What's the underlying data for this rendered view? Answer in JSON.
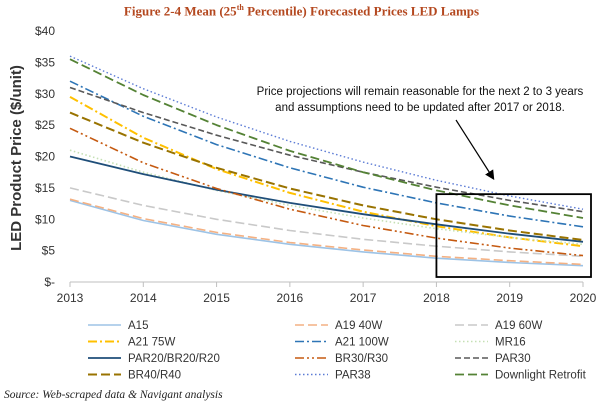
{
  "figure": {
    "title_prefix": "Figure 2-4 Mean (25",
    "title_sup": "th",
    "title_suffix": " Percentile) Forecasted Prices LED Lamps",
    "source": "Source: Web-scraped data & Navigant analysis"
  },
  "chart_data": {
    "type": "line",
    "ylabel": "LED Product Price ($/unit)",
    "xlabel": "",
    "x": [
      2013,
      2014,
      2015,
      2016,
      2017,
      2018,
      2019,
      2020
    ],
    "x_tick_labels": [
      "2013",
      "2014",
      "2015",
      "2016",
      "2017",
      "2018",
      "2019",
      "2020"
    ],
    "ylim": [
      0,
      40
    ],
    "y_ticks": [
      0,
      5,
      10,
      15,
      20,
      25,
      30,
      35,
      40
    ],
    "y_tick_labels": [
      "$-",
      "$5",
      "$10",
      "$15",
      "$20",
      "$25",
      "$30",
      "$35",
      "$40"
    ],
    "grid": false,
    "legend_position": "bottom",
    "annotation": {
      "line1": "Price projections will remain reasonable for the next 2 to 3 years",
      "line2": "and assumptions need to be updated after 2017 or 2018."
    },
    "highlight_range": {
      "x": [
        2018,
        2020
      ],
      "y": [
        0,
        14
      ]
    },
    "series": [
      {
        "name": "A15",
        "color": "#9dc3e6",
        "dash": "solid",
        "width": 1.6,
        "values": [
          13.0,
          9.8,
          7.6,
          6.0,
          4.8,
          3.8,
          3.1,
          2.6
        ]
      },
      {
        "name": "A19 40W",
        "color": "#f4b183",
        "dash": "long",
        "width": 1.6,
        "values": [
          13.2,
          10.1,
          7.9,
          6.3,
          5.1,
          4.1,
          3.4,
          2.8
        ]
      },
      {
        "name": "A19 60W",
        "color": "#c9c9c9",
        "dash": "long",
        "width": 1.6,
        "values": [
          15.0,
          12.2,
          10.0,
          8.2,
          6.8,
          5.7,
          4.8,
          4.1
        ]
      },
      {
        "name": "A21 75W",
        "color": "#ffc000",
        "dash": "dashdot",
        "width": 2.0,
        "values": [
          29.5,
          23.0,
          18.0,
          14.2,
          11.2,
          8.9,
          7.1,
          5.7
        ]
      },
      {
        "name": "A21 100W",
        "color": "#2e75b6",
        "dash": "dashdot",
        "width": 1.6,
        "values": [
          32.0,
          26.4,
          21.9,
          18.2,
          15.1,
          12.6,
          10.5,
          8.8
        ]
      },
      {
        "name": "MR16",
        "color": "#c5e0b4",
        "dash": "dot",
        "width": 1.6,
        "values": [
          21.0,
          17.5,
          14.6,
          12.2,
          10.2,
          8.5,
          7.1,
          6.0
        ]
      },
      {
        "name": "PAR20/BR20/R20",
        "color": "#1f4e79",
        "dash": "solid",
        "width": 1.8,
        "values": [
          20.0,
          17.2,
          14.7,
          12.6,
          10.8,
          9.2,
          7.7,
          6.4
        ]
      },
      {
        "name": "BR30/R30",
        "color": "#c55a11",
        "dash": "dashdotdot",
        "width": 1.6,
        "values": [
          24.5,
          19.0,
          14.9,
          11.6,
          9.0,
          7.0,
          5.4,
          4.2
        ]
      },
      {
        "name": "PAR30",
        "color": "#595959",
        "dash": "medium",
        "width": 1.6,
        "values": [
          31.0,
          27.0,
          23.4,
          20.2,
          17.5,
          15.1,
          13.0,
          11.2
        ]
      },
      {
        "name": "BR40/R40",
        "color": "#997300",
        "dash": "long",
        "width": 2.0,
        "values": [
          27.0,
          22.2,
          18.2,
          14.9,
          12.2,
          10.0,
          8.2,
          6.7
        ]
      },
      {
        "name": "PAR38",
        "color": "#5b7bd5",
        "dash": "dot",
        "width": 1.4,
        "values": [
          36.0,
          30.8,
          26.3,
          22.4,
          19.1,
          16.2,
          13.7,
          11.6
        ]
      },
      {
        "name": "Downlight Retrofit",
        "color": "#548235",
        "dash": "long",
        "width": 1.8,
        "values": [
          35.5,
          29.8,
          25.0,
          20.9,
          17.5,
          14.6,
          12.2,
          10.2
        ]
      }
    ]
  }
}
